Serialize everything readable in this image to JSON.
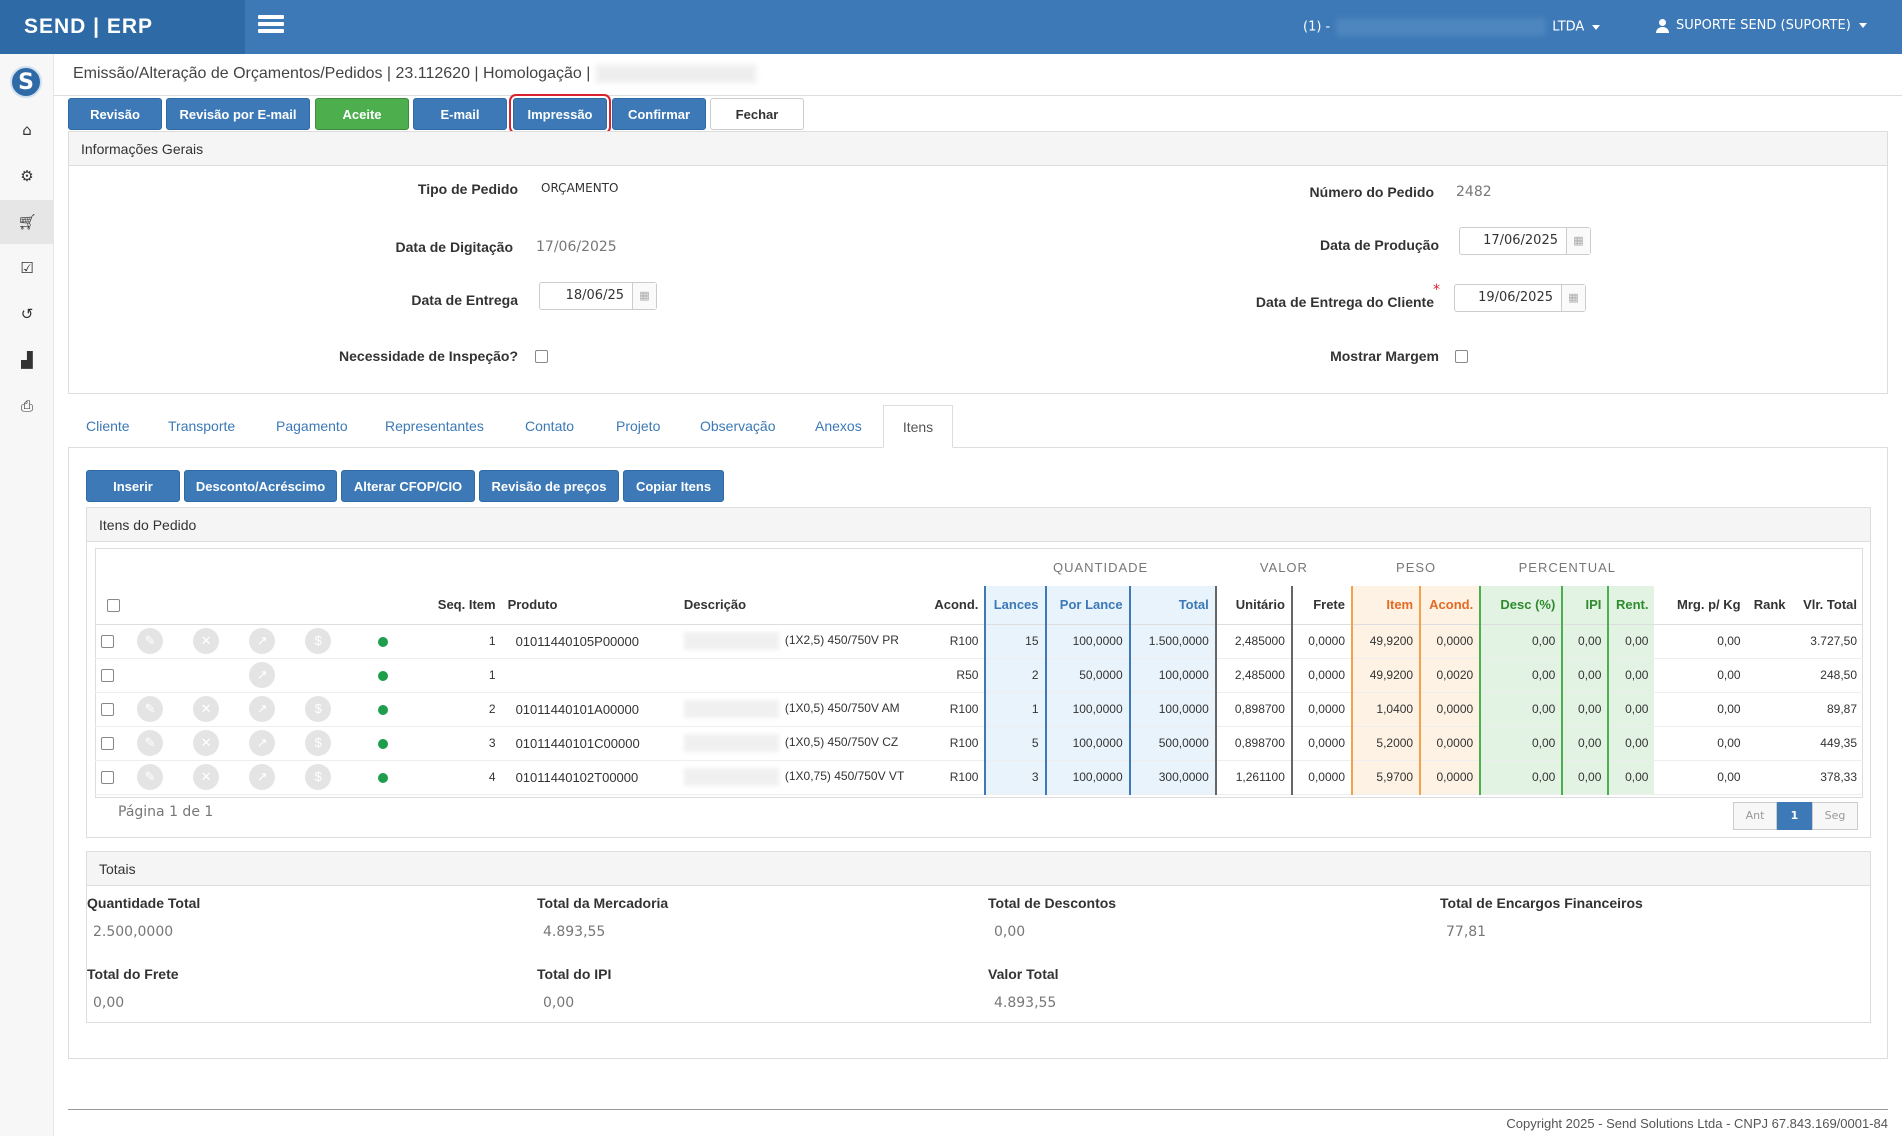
{
  "topbar": {
    "brand": "SEND | ERP",
    "company_prefix": "(1) -",
    "company_suffix": "LTDA",
    "user": "SUPORTE SEND (SUPORTE)"
  },
  "page": {
    "title": "Emissão/Alteração de Orçamentos/Pedidos | 23.112620 | Homologação |"
  },
  "toolbar": {
    "revisao": "Revisão",
    "revisao_email": "Revisão por E-mail",
    "aceite": "Aceite",
    "email": "E-mail",
    "impressao": "Impressão",
    "confirmar": "Confirmar",
    "fechar": "Fechar"
  },
  "geral": {
    "heading": "Informações Gerais",
    "tipo_pedido_label": "Tipo de Pedido",
    "tipo_pedido_value": "ORÇAMENTO",
    "numero_pedido_label": "Número do Pedido",
    "numero_pedido_value": "2482",
    "data_digitacao_label": "Data de Digitação",
    "data_digitacao_value": "17/06/2025",
    "data_producao_label": "Data de Produção",
    "data_producao_value": "17/06/2025",
    "data_entrega_label": "Data de Entrega",
    "data_entrega_value": "18/06/25",
    "data_entrega_cliente_label": "Data de Entrega do Cliente",
    "data_entrega_cliente_value": "19/06/2025",
    "inspecao_label": "Necessidade de Inspeção?",
    "margem_label": "Mostrar Margem",
    "required_mark": "*"
  },
  "tabs": [
    "Cliente",
    "Transporte",
    "Pagamento",
    "Representantes",
    "Contato",
    "Projeto",
    "Observação",
    "Anexos",
    "Itens"
  ],
  "items_toolbar": {
    "inserir": "Inserir",
    "desconto": "Desconto/Acréscimo",
    "cfop": "Alterar CFOP/CIO",
    "revisao_precos": "Revisão de preços",
    "copiar": "Copiar Itens"
  },
  "items": {
    "heading": "Itens do Pedido",
    "groups": {
      "quantidade": "QUANTIDADE",
      "valor": "VALOR",
      "peso": "PESO",
      "percentual": "PERCENTUAL"
    },
    "columns": {
      "seq": "Seq. Item",
      "produto": "Produto",
      "descricao": "Descrição",
      "acond": "Acond.",
      "lances": "Lances",
      "por_lance": "Por Lance",
      "total": "Total",
      "unitario": "Unitário",
      "frete": "Frete",
      "peso_item": "Item",
      "peso_acond": "Acond.",
      "desc": "Desc (%)",
      "ipi": "IPI",
      "rent": "Rent.",
      "mrg": "Mrg. p/ Kg",
      "rank": "Rank",
      "vlr_total": "Vlr. Total"
    },
    "rows": [
      {
        "seq": "1",
        "produto": "01011440105P00000",
        "descricao": "(1X2,5) 450/750V PR",
        "acond": "R100",
        "lances": "15",
        "por_lance": "100,0000",
        "total": "1.500,0000",
        "unitario": "2,485000",
        "frete": "0,0000",
        "peso_item": "49,9200",
        "peso_acond": "0,0000",
        "desc": "0,00",
        "ipi": "0,00",
        "rent": "0,00",
        "mrg": "0,00",
        "vlr_total": "3.727,50",
        "full": true
      },
      {
        "seq": "1",
        "produto": "",
        "descricao": "",
        "acond": "R50",
        "lances": "2",
        "por_lance": "50,0000",
        "total": "100,0000",
        "unitario": "2,485000",
        "frete": "0,0000",
        "peso_item": "49,9200",
        "peso_acond": "0,0020",
        "desc": "0,00",
        "ipi": "0,00",
        "rent": "0,00",
        "mrg": "0,00",
        "vlr_total": "248,50",
        "full": false
      },
      {
        "seq": "2",
        "produto": "01011440101A00000",
        "descricao": "(1X0,5) 450/750V AM",
        "acond": "R100",
        "lances": "1",
        "por_lance": "100,0000",
        "total": "100,0000",
        "unitario": "0,898700",
        "frete": "0,0000",
        "peso_item": "1,0400",
        "peso_acond": "0,0000",
        "desc": "0,00",
        "ipi": "0,00",
        "rent": "0,00",
        "mrg": "0,00",
        "vlr_total": "89,87",
        "full": true
      },
      {
        "seq": "3",
        "produto": "01011440101C00000",
        "descricao": "(1X0,5) 450/750V CZ",
        "acond": "R100",
        "lances": "5",
        "por_lance": "100,0000",
        "total": "500,0000",
        "unitario": "0,898700",
        "frete": "0,0000",
        "peso_item": "5,2000",
        "peso_acond": "0,0000",
        "desc": "0,00",
        "ipi": "0,00",
        "rent": "0,00",
        "mrg": "0,00",
        "vlr_total": "449,35",
        "full": true
      },
      {
        "seq": "4",
        "produto": "01011440102T00000",
        "descricao": "(1X0,75) 450/750V VT",
        "acond": "R100",
        "lances": "3",
        "por_lance": "100,0000",
        "total": "300,0000",
        "unitario": "1,261100",
        "frete": "0,0000",
        "peso_item": "5,9700",
        "peso_acond": "0,0000",
        "desc": "0,00",
        "ipi": "0,00",
        "rent": "0,00",
        "mrg": "0,00",
        "vlr_total": "378,33",
        "full": true
      }
    ],
    "pager_text": "Página 1 de 1",
    "pager_prev": "Ant",
    "pager_current": "1",
    "pager_next": "Seg"
  },
  "totais": {
    "heading": "Totais",
    "qtd_label": "Quantidade Total",
    "qtd_value": "2.500,0000",
    "merc_label": "Total da Mercadoria",
    "merc_value": "4.893,55",
    "desc_label": "Total de Descontos",
    "desc_value": "0,00",
    "enc_label": "Total de Encargos Financeiros",
    "enc_value": "77,81",
    "frete_label": "Total do Frete",
    "frete_value": "0,00",
    "ipi_label": "Total do IPI",
    "ipi_value": "0,00",
    "valor_label": "Valor Total",
    "valor_value": "4.893,55"
  },
  "footer": "Copyright 2025 - Send Solutions Ltda - CNPJ 67.843.169/0001-84",
  "colors": {
    "primary": "#3c79b6",
    "brand_dark": "#2e6aa5",
    "success": "#4cae4c",
    "highlight": "#d9232e"
  }
}
